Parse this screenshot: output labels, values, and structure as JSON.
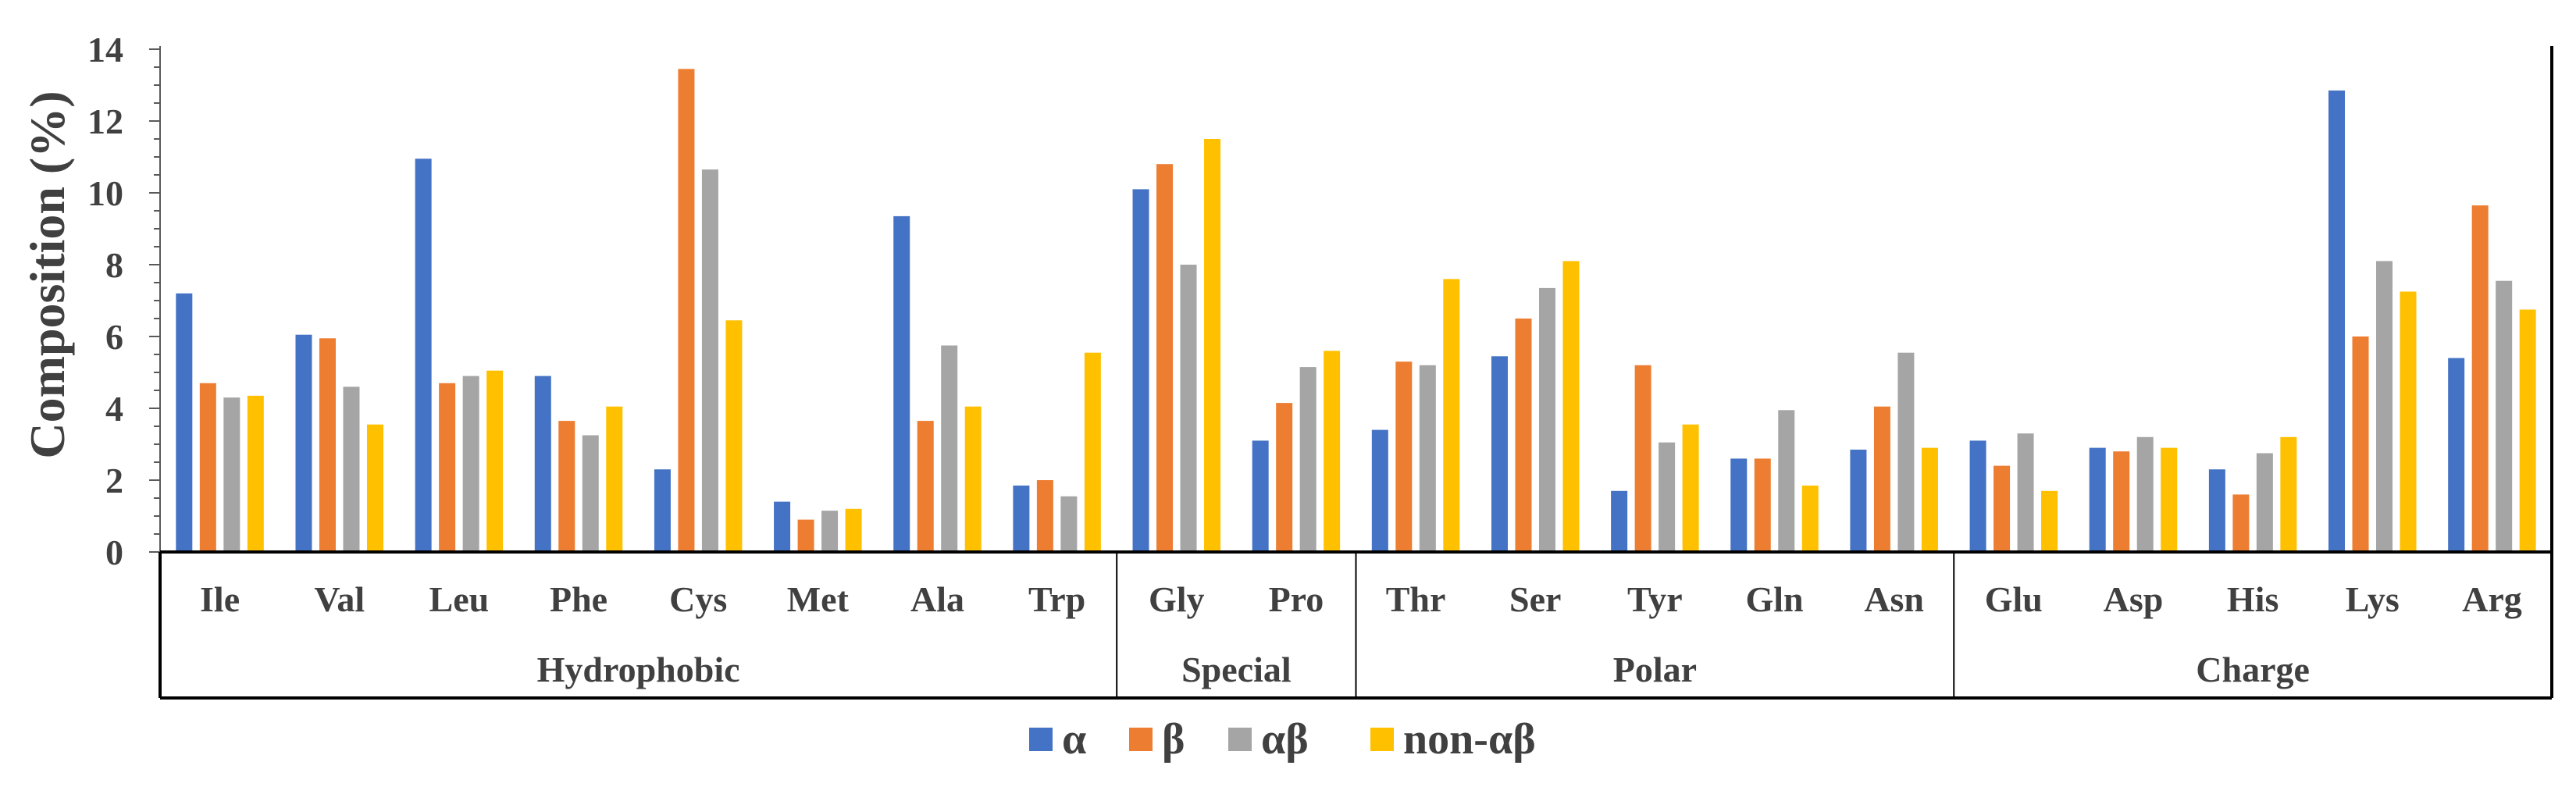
{
  "chart_data": {
    "type": "bar",
    "title": "",
    "xlabel": "",
    "ylabel": "Composition (%)",
    "ylim": [
      0,
      14
    ],
    "yticks": [
      0,
      2,
      4,
      6,
      8,
      10,
      12,
      14
    ],
    "grid": false,
    "legend_position": "bottom-center",
    "categories": [
      "Ile",
      "Val",
      "Leu",
      "Phe",
      "Cys",
      "Met",
      "Ala",
      "Trp",
      "Gly",
      "Pro",
      "Thr",
      "Ser",
      "Tyr",
      "Gln",
      "Asn",
      "Glu",
      "Asp",
      "His",
      "Lys",
      "Arg"
    ],
    "groups": [
      {
        "label": "Hydrophobic",
        "start": 0,
        "end": 7
      },
      {
        "label": "Special",
        "start": 8,
        "end": 9
      },
      {
        "label": "Polar",
        "start": 10,
        "end": 14
      },
      {
        "label": "Charge",
        "start": 15,
        "end": 19
      }
    ],
    "series": [
      {
        "name": "α",
        "color": "#4472C4",
        "values": [
          7.2,
          6.05,
          10.95,
          4.9,
          2.3,
          1.4,
          9.35,
          1.85,
          10.1,
          3.1,
          3.4,
          5.45,
          1.7,
          2.6,
          2.85,
          3.1,
          2.9,
          2.3,
          12.85,
          5.4
        ]
      },
      {
        "name": "β",
        "color": "#ED7D31",
        "values": [
          4.7,
          5.95,
          4.7,
          3.65,
          13.45,
          0.9,
          3.65,
          2.0,
          10.8,
          4.15,
          5.3,
          6.5,
          5.2,
          2.6,
          4.05,
          2.4,
          2.8,
          1.6,
          6.0,
          9.65
        ]
      },
      {
        "name": "αβ",
        "color": "#A5A5A5",
        "values": [
          4.3,
          4.6,
          4.9,
          3.25,
          10.65,
          1.15,
          5.75,
          1.55,
          8.0,
          5.15,
          5.2,
          7.35,
          3.05,
          3.95,
          5.55,
          3.3,
          3.2,
          2.75,
          8.1,
          7.55
        ]
      },
      {
        "name": "non-αβ",
        "color": "#FFC000",
        "values": [
          4.35,
          3.55,
          5.05,
          4.05,
          6.45,
          1.2,
          4.05,
          5.55,
          11.5,
          5.6,
          7.6,
          8.1,
          3.55,
          1.85,
          2.9,
          1.7,
          2.9,
          3.2,
          7.25,
          6.75
        ]
      }
    ]
  }
}
